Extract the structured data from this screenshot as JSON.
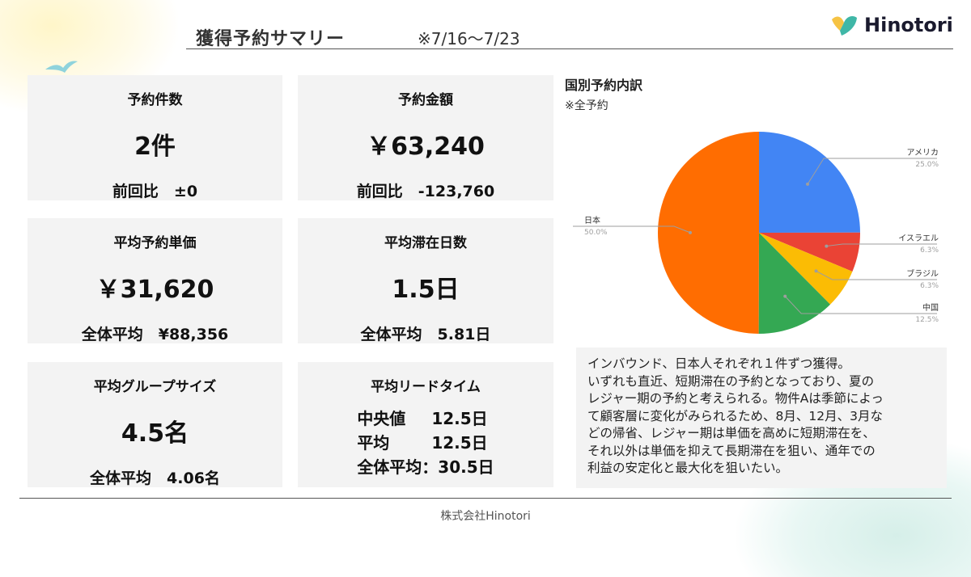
{
  "header": {
    "title": "獲得予約サマリー",
    "period": "※7/16〜7/23",
    "logo_text": "Hinotori",
    "logo_colors": [
      "#f6c344",
      "#3fb7a7"
    ]
  },
  "cards": {
    "bookings": {
      "label": "予約件数",
      "value": "2件",
      "sub": "前回比　±0"
    },
    "amount": {
      "label": "予約金額",
      "value": "￥63,240",
      "sub": "前回比　-123,760"
    },
    "avg_price": {
      "label": "平均予約単価",
      "value": "￥31,620",
      "sub": "全体平均　¥88,356"
    },
    "avg_stay": {
      "label": "平均滞在日数",
      "value": "1.5日",
      "sub": "全体平均　5.81日"
    },
    "avg_group": {
      "label": "平均グループサイズ",
      "value": "4.5名",
      "sub": "全体平均　4.06名"
    },
    "lead_time": {
      "label": "平均リードタイム",
      "rows": [
        {
          "k": "中央値",
          "v": "12.5日"
        },
        {
          "k": "平均",
          "v": "12.5日"
        },
        {
          "k": "全体平均：30.5日",
          "v": ""
        }
      ]
    }
  },
  "chart_data": {
    "type": "pie",
    "title": "国別予約内訳",
    "subtitle": "※全予約",
    "slices": [
      {
        "label": "アメリカ",
        "value": 25.0,
        "pct": "25.0%",
        "color": "#4285f4"
      },
      {
        "label": "イスラエル",
        "value": 6.3,
        "pct": "6.3%",
        "color": "#ea4335"
      },
      {
        "label": "ブラジル",
        "value": 6.3,
        "pct": "6.3%",
        "color": "#fbbc04"
      },
      {
        "label": "中国",
        "value": 12.5,
        "pct": "12.5%",
        "color": "#34a853"
      },
      {
        "label": "日本",
        "value": 50.0,
        "pct": "50.0%",
        "color": "#ff6d01"
      }
    ],
    "legend": "none",
    "label_style": "callout"
  },
  "comment": "インバウンド、日本人それぞれ１件ずつ獲得。\nいずれも直近、短期滞在の予約となっており、夏の\nレジャー期の予約と考えられる。物件Aは季節によっ\nて顧客層に変化がみられるため、8月、12月、3月な\nどの帰省、レジャー期は単価を高めに短期滞在を、\nそれ以外は単価を抑えて長期滞在を狙い、通年での\n利益の安定化と最大化を狙いたい。",
  "footer": "株式会社Hinotori"
}
